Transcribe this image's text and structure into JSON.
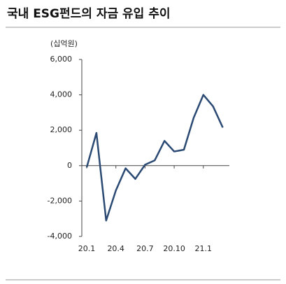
{
  "chart_data": {
    "type": "line",
    "title": "국내 ESG펀드의 자금 유입 추이",
    "unit": "(십억원)",
    "categories": [
      "20.1",
      null,
      null,
      "20.4",
      null,
      null,
      "20.7",
      null,
      null,
      "20.10",
      null,
      null,
      "21.1",
      null,
      null
    ],
    "series": [
      {
        "name": "자금 유입",
        "color": "#2b4a73",
        "values": [
          -100,
          1850,
          -3100,
          -1400,
          -150,
          -750,
          50,
          300,
          1400,
          800,
          900,
          2700,
          4000,
          3350,
          2150
        ]
      }
    ],
    "ylim": [
      -4000,
      6000
    ],
    "yticks": [
      {
        "value": -4000,
        "label": "-4,000"
      },
      {
        "value": -2000,
        "label": "-2,000"
      },
      0,
      {
        "value": 2000,
        "label": "2,000"
      },
      {
        "value": 4000,
        "label": "4,000"
      },
      {
        "value": 6000,
        "label": "6,000"
      }
    ]
  }
}
